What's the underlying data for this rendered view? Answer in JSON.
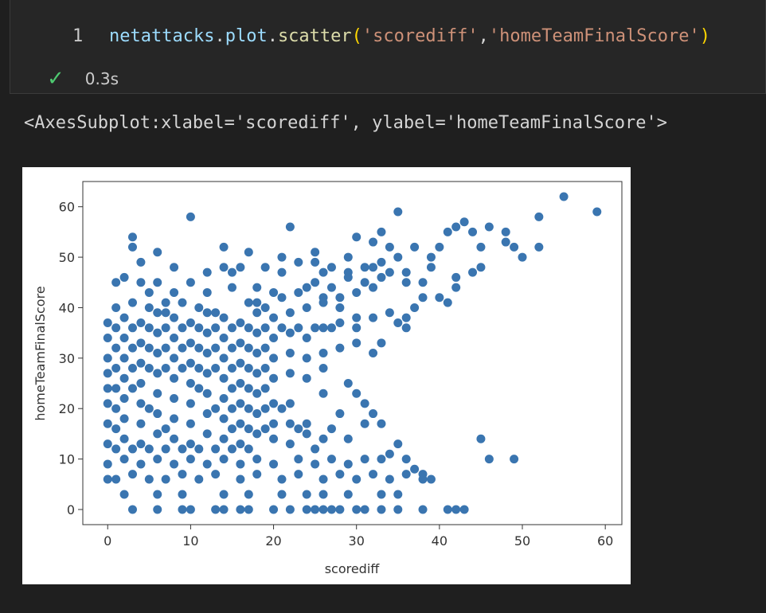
{
  "cell": {
    "line_number": "1",
    "code_tokens": [
      {
        "text": "netattacks",
        "cls": "tok-var"
      },
      {
        "text": ".",
        "cls": "tok-plain"
      },
      {
        "text": "plot",
        "cls": "tok-var"
      },
      {
        "text": ".",
        "cls": "tok-plain"
      },
      {
        "text": "scatter",
        "cls": "tok-fn"
      },
      {
        "text": "(",
        "cls": "tok-paren"
      },
      {
        "text": "'scorediff'",
        "cls": "tok-str"
      },
      {
        "text": ",",
        "cls": "tok-plain"
      },
      {
        "text": "'homeTeamFinalScore'",
        "cls": "tok-str"
      },
      {
        "text": ")",
        "cls": "tok-paren"
      }
    ],
    "status_icon": "check-icon",
    "exec_time": "0.3s"
  },
  "output": {
    "repr_text": "<AxesSubplot:xlabel='scorediff', ylabel='homeTeamFinalScore'>"
  },
  "colors": {
    "marker": "#3a75b0",
    "check": "#4ec970"
  },
  "chart_data": {
    "type": "scatter",
    "xlabel": "scorediff",
    "ylabel": "homeTeamFinalScore",
    "xlim": [
      -3,
      62
    ],
    "ylim": [
      -3,
      65
    ],
    "xticks": [
      0,
      10,
      20,
      30,
      40,
      50,
      60
    ],
    "yticks": [
      0,
      10,
      20,
      30,
      40,
      50,
      60
    ],
    "grid": false,
    "points": [
      [
        55,
        62
      ],
      [
        59,
        59
      ],
      [
        52,
        58
      ],
      [
        10,
        58
      ],
      [
        35,
        59
      ],
      [
        22,
        56
      ],
      [
        33,
        55
      ],
      [
        41,
        55
      ],
      [
        42,
        56
      ],
      [
        43,
        57
      ],
      [
        46,
        56
      ],
      [
        48,
        55
      ],
      [
        30,
        54
      ],
      [
        32,
        53
      ],
      [
        34,
        52
      ],
      [
        37,
        52
      ],
      [
        40,
        52
      ],
      [
        45,
        52
      ],
      [
        49,
        52
      ],
      [
        52,
        52
      ],
      [
        14,
        52
      ],
      [
        6,
        51
      ],
      [
        17,
        51
      ],
      [
        25,
        51
      ],
      [
        3,
        54
      ],
      [
        3,
        52
      ],
      [
        44,
        47
      ],
      [
        45,
        48
      ],
      [
        39,
        48
      ],
      [
        42,
        46
      ],
      [
        36,
        47
      ],
      [
        38,
        45
      ],
      [
        40,
        42
      ],
      [
        41,
        41
      ],
      [
        37,
        40
      ],
      [
        36,
        38
      ],
      [
        36,
        36
      ],
      [
        35,
        37
      ],
      [
        33,
        33
      ],
      [
        32,
        31
      ],
      [
        29,
        25
      ],
      [
        30,
        23
      ],
      [
        31,
        21
      ],
      [
        32,
        19
      ],
      [
        33,
        17
      ],
      [
        26,
        23
      ],
      [
        28,
        19
      ],
      [
        31,
        17
      ],
      [
        35,
        13
      ],
      [
        34,
        11
      ],
      [
        36,
        10
      ],
      [
        37,
        8
      ],
      [
        38,
        7
      ],
      [
        39,
        6
      ],
      [
        41,
        0
      ],
      [
        42,
        0
      ],
      [
        43,
        0
      ],
      [
        45,
        14
      ],
      [
        46,
        10
      ],
      [
        49,
        10
      ],
      [
        0,
        37
      ],
      [
        0,
        34
      ],
      [
        0,
        30
      ],
      [
        0,
        27
      ],
      [
        0,
        24
      ],
      [
        0,
        21
      ],
      [
        0,
        17
      ],
      [
        0,
        13
      ],
      [
        0,
        9
      ],
      [
        0,
        6
      ],
      [
        1,
        45
      ],
      [
        2,
        46
      ],
      [
        4,
        45
      ],
      [
        5,
        43
      ],
      [
        7,
        41
      ],
      [
        8,
        43
      ],
      [
        10,
        45
      ],
      [
        12,
        43
      ],
      [
        15,
        44
      ],
      [
        18,
        41
      ],
      [
        20,
        43
      ],
      [
        24,
        44
      ],
      [
        26,
        42
      ],
      [
        28,
        40
      ],
      [
        30,
        38
      ],
      [
        27,
        36
      ],
      [
        8,
        48
      ],
      [
        15,
        47
      ],
      [
        19,
        48
      ],
      [
        21,
        47
      ],
      [
        23,
        49
      ],
      [
        25,
        49
      ],
      [
        27,
        48
      ],
      [
        29,
        47
      ],
      [
        31,
        48
      ],
      [
        33,
        49
      ],
      [
        35,
        50
      ],
      [
        21,
        50
      ],
      [
        3,
        0
      ],
      [
        6,
        0
      ],
      [
        9,
        0
      ],
      [
        10,
        0
      ],
      [
        13,
        0
      ],
      [
        14,
        0
      ],
      [
        16,
        0
      ],
      [
        17,
        0
      ],
      [
        20,
        0
      ],
      [
        22,
        0
      ],
      [
        24,
        0
      ],
      [
        25,
        0
      ],
      [
        26,
        0
      ],
      [
        27,
        0
      ],
      [
        28,
        0
      ],
      [
        30,
        0
      ],
      [
        31,
        0
      ],
      [
        33,
        0
      ],
      [
        35,
        0
      ],
      [
        38,
        0
      ],
      [
        2,
        3
      ],
      [
        6,
        3
      ],
      [
        9,
        3
      ],
      [
        14,
        3
      ],
      [
        17,
        3
      ],
      [
        21,
        3
      ],
      [
        24,
        3
      ],
      [
        26,
        3
      ],
      [
        29,
        3
      ],
      [
        33,
        3
      ],
      [
        35,
        3
      ],
      [
        1,
        6
      ],
      [
        3,
        7
      ],
      [
        5,
        6
      ],
      [
        7,
        6
      ],
      [
        9,
        7
      ],
      [
        11,
        6
      ],
      [
        13,
        7
      ],
      [
        16,
        6
      ],
      [
        18,
        7
      ],
      [
        21,
        6
      ],
      [
        23,
        7
      ],
      [
        26,
        6
      ],
      [
        28,
        7
      ],
      [
        30,
        6
      ],
      [
        32,
        7
      ],
      [
        34,
        6
      ],
      [
        36,
        7
      ],
      [
        38,
        6
      ],
      [
        2,
        10
      ],
      [
        4,
        9
      ],
      [
        6,
        10
      ],
      [
        8,
        9
      ],
      [
        10,
        10
      ],
      [
        12,
        9
      ],
      [
        14,
        10
      ],
      [
        16,
        9
      ],
      [
        18,
        10
      ],
      [
        20,
        9
      ],
      [
        23,
        10
      ],
      [
        25,
        9
      ],
      [
        27,
        10
      ],
      [
        29,
        9
      ],
      [
        31,
        10
      ],
      [
        33,
        10
      ],
      [
        2,
        14
      ],
      [
        4,
        13
      ],
      [
        6,
        15
      ],
      [
        8,
        14
      ],
      [
        10,
        13
      ],
      [
        12,
        15
      ],
      [
        14,
        14
      ],
      [
        16,
        13
      ],
      [
        18,
        15
      ],
      [
        20,
        14
      ],
      [
        22,
        13
      ],
      [
        24,
        15
      ],
      [
        26,
        14
      ],
      [
        29,
        14
      ],
      [
        2,
        18
      ],
      [
        4,
        17
      ],
      [
        6,
        19
      ],
      [
        8,
        18
      ],
      [
        10,
        17
      ],
      [
        12,
        19
      ],
      [
        14,
        18
      ],
      [
        16,
        17
      ],
      [
        18,
        19
      ],
      [
        20,
        17
      ],
      [
        22,
        17
      ],
      [
        24,
        17
      ],
      [
        2,
        22
      ],
      [
        4,
        21
      ],
      [
        6,
        23
      ],
      [
        8,
        22
      ],
      [
        10,
        21
      ],
      [
        12,
        23
      ],
      [
        14,
        22
      ],
      [
        16,
        21
      ],
      [
        18,
        23
      ],
      [
        20,
        21
      ],
      [
        22,
        21
      ],
      [
        2,
        26
      ],
      [
        4,
        25
      ],
      [
        6,
        27
      ],
      [
        8,
        26
      ],
      [
        10,
        25
      ],
      [
        12,
        27
      ],
      [
        14,
        26
      ],
      [
        16,
        25
      ],
      [
        18,
        27
      ],
      [
        20,
        26
      ],
      [
        22,
        27
      ],
      [
        24,
        26
      ],
      [
        26,
        28
      ],
      [
        2,
        30
      ],
      [
        4,
        29
      ],
      [
        6,
        31
      ],
      [
        8,
        30
      ],
      [
        10,
        29
      ],
      [
        12,
        31
      ],
      [
        14,
        30
      ],
      [
        16,
        29
      ],
      [
        18,
        31
      ],
      [
        20,
        30
      ],
      [
        22,
        31
      ],
      [
        24,
        30
      ],
      [
        26,
        31
      ],
      [
        28,
        32
      ],
      [
        30,
        33
      ],
      [
        2,
        34
      ],
      [
        4,
        33
      ],
      [
        6,
        35
      ],
      [
        8,
        34
      ],
      [
        10,
        33
      ],
      [
        12,
        35
      ],
      [
        14,
        34
      ],
      [
        16,
        33
      ],
      [
        18,
        35
      ],
      [
        20,
        34
      ],
      [
        22,
        35
      ],
      [
        24,
        34
      ],
      [
        26,
        36
      ],
      [
        28,
        37
      ],
      [
        30,
        36
      ],
      [
        32,
        38
      ],
      [
        34,
        39
      ],
      [
        2,
        38
      ],
      [
        4,
        37
      ],
      [
        6,
        39
      ],
      [
        8,
        38
      ],
      [
        10,
        37
      ],
      [
        12,
        39
      ],
      [
        14,
        38
      ],
      [
        16,
        37
      ],
      [
        18,
        39
      ],
      [
        20,
        38
      ],
      [
        22,
        39
      ],
      [
        24,
        40
      ],
      [
        26,
        41
      ],
      [
        28,
        42
      ],
      [
        30,
        43
      ],
      [
        32,
        44
      ],
      [
        3,
        41
      ],
      [
        5,
        40
      ],
      [
        7,
        39
      ],
      [
        9,
        41
      ],
      [
        11,
        40
      ],
      [
        13,
        39
      ],
      [
        17,
        41
      ],
      [
        19,
        40
      ],
      [
        21,
        42
      ],
      [
        23,
        43
      ],
      [
        25,
        45
      ],
      [
        27,
        44
      ],
      [
        29,
        46
      ],
      [
        31,
        45
      ],
      [
        33,
        46
      ],
      [
        1,
        28
      ],
      [
        3,
        24
      ],
      [
        5,
        20
      ],
      [
        7,
        16
      ],
      [
        9,
        12
      ],
      [
        11,
        24
      ],
      [
        13,
        20
      ],
      [
        15,
        16
      ],
      [
        17,
        12
      ],
      [
        19,
        24
      ],
      [
        21,
        20
      ],
      [
        23,
        16
      ],
      [
        25,
        12
      ],
      [
        27,
        16
      ],
      [
        1,
        20
      ],
      [
        1,
        16
      ],
      [
        1,
        12
      ],
      [
        3,
        12
      ],
      [
        5,
        12
      ],
      [
        7,
        12
      ],
      [
        11,
        12
      ],
      [
        13,
        12
      ],
      [
        15,
        12
      ],
      [
        17,
        16
      ],
      [
        19,
        16
      ],
      [
        15,
        20
      ],
      [
        17,
        20
      ],
      [
        19,
        20
      ],
      [
        15,
        24
      ],
      [
        17,
        24
      ],
      [
        15,
        28
      ],
      [
        17,
        28
      ],
      [
        19,
        28
      ],
      [
        3,
        28
      ],
      [
        5,
        28
      ],
      [
        7,
        28
      ],
      [
        9,
        28
      ],
      [
        11,
        28
      ],
      [
        13,
        28
      ],
      [
        3,
        32
      ],
      [
        5,
        32
      ],
      [
        7,
        32
      ],
      [
        9,
        32
      ],
      [
        11,
        32
      ],
      [
        13,
        32
      ],
      [
        15,
        32
      ],
      [
        17,
        32
      ],
      [
        19,
        32
      ],
      [
        3,
        36
      ],
      [
        5,
        36
      ],
      [
        7,
        36
      ],
      [
        9,
        36
      ],
      [
        11,
        36
      ],
      [
        13,
        36
      ],
      [
        15,
        36
      ],
      [
        17,
        36
      ],
      [
        19,
        36
      ],
      [
        21,
        36
      ],
      [
        23,
        36
      ],
      [
        25,
        36
      ],
      [
        1,
        40
      ],
      [
        1,
        36
      ],
      [
        1,
        32
      ],
      [
        1,
        24
      ],
      [
        6,
        45
      ],
      [
        4,
        49
      ],
      [
        12,
        47
      ],
      [
        14,
        48
      ],
      [
        16,
        48
      ],
      [
        18,
        44
      ],
      [
        26,
        47
      ],
      [
        29,
        50
      ],
      [
        32,
        48
      ],
      [
        34,
        47
      ],
      [
        36,
        45
      ],
      [
        38,
        42
      ],
      [
        39,
        50
      ],
      [
        42,
        44
      ],
      [
        50,
        50
      ],
      [
        48,
        53
      ],
      [
        44,
        55
      ]
    ]
  }
}
